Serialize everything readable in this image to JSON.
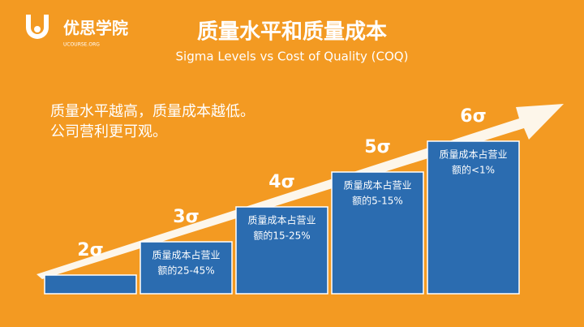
{
  "logo": {
    "name": "优思学院",
    "site": "UCOURSE.ORG"
  },
  "header": {
    "title": "质量水平和质量成本",
    "subtitle": "Sigma Levels vs Cost of Quality (COQ)"
  },
  "body": {
    "lines": [
      "质量水平越高，质量成本越低。",
      "公司营利更可观。"
    ]
  },
  "steps": [
    {
      "label": "2σ",
      "text": []
    },
    {
      "label": "3σ",
      "text": [
        "质量成本占营业",
        "额的25-45%"
      ]
    },
    {
      "label": "4σ",
      "text": [
        "质量成本占营业",
        "额的15-25%"
      ]
    },
    {
      "label": "5σ",
      "text": [
        "质量成本占营业",
        "额的5-15%"
      ]
    },
    {
      "label": "6σ",
      "text": [
        "质量成本占营业",
        "额的<1%"
      ]
    }
  ]
}
